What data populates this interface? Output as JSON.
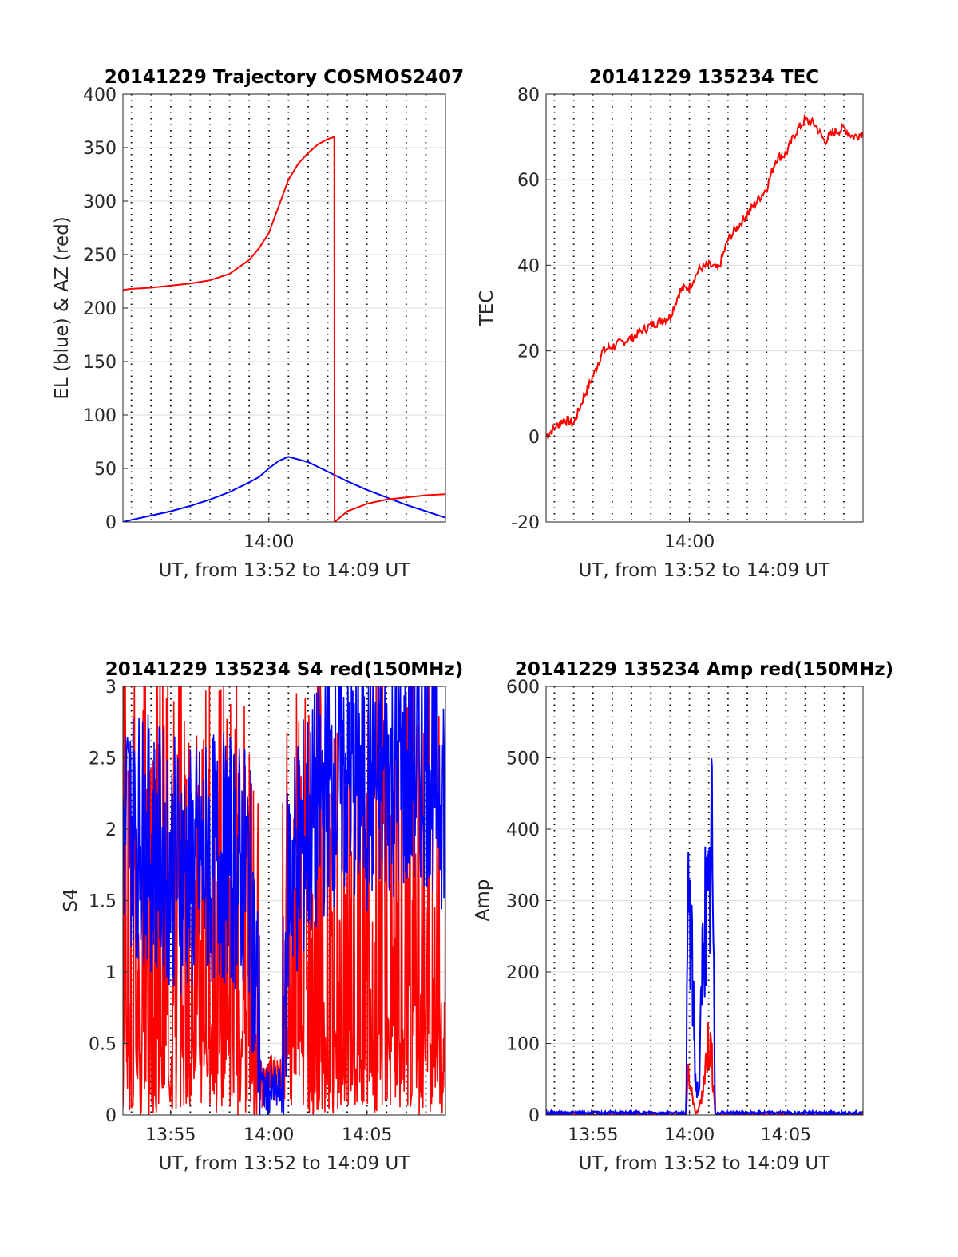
{
  "chart_data": [
    {
      "type": "line",
      "title": "20141229 Trajectory COSMOS2407",
      "xlabel": "UT, from 13:52 to 14:09 UT",
      "ylabel": "EL (blue) & AZ (red)",
      "xlim": [
        "13:52:34",
        "14:09:00"
      ],
      "ylim": [
        0,
        400
      ],
      "yticks": [
        "0",
        "50",
        "100",
        "150",
        "200",
        "250",
        "300",
        "350",
        "400"
      ],
      "xticks": [
        {
          "t": "14:00",
          "label": "14:00"
        }
      ],
      "grid": "dotted vertical every minute, solid horizontal",
      "series": [
        {
          "color": "#0000ff",
          "x": [
            "13:52:34",
            "13:53",
            "13:54",
            "13:55",
            "13:56",
            "13:57",
            "13:58",
            "13:59",
            "13:59:30",
            "14:00",
            "14:00:30",
            "14:01",
            "14:02",
            "14:03",
            "14:04",
            "14:05",
            "14:06",
            "14:07",
            "14:08",
            "14:09"
          ],
          "values": [
            0,
            2,
            6,
            10,
            15,
            21,
            28,
            37,
            42,
            50,
            57,
            61,
            56,
            47,
            38,
            30,
            23,
            16,
            10,
            4
          ]
        },
        {
          "color": "#ff0000",
          "x": [
            "13:52:34",
            "13:53",
            "13:54",
            "13:55",
            "13:56",
            "13:57",
            "13:58",
            "13:59",
            "13:59:30",
            "14:00",
            "14:00:30",
            "14:01",
            "14:01:30",
            "14:02",
            "14:02:30",
            "14:03",
            "14:03:20",
            "14:03:21",
            "14:04",
            "14:05",
            "14:06",
            "14:07",
            "14:08",
            "14:09"
          ],
          "values": [
            217,
            218,
            219,
            221,
            223,
            226,
            232,
            245,
            256,
            270,
            295,
            320,
            335,
            345,
            353,
            358,
            360,
            0,
            10,
            17,
            21,
            23,
            25,
            26
          ]
        }
      ]
    },
    {
      "type": "line",
      "title": "20141229 135234 TEC",
      "xlabel": "UT, from 13:52 to 14:09 UT",
      "ylabel": "TEC",
      "xlim": [
        "13:52:34",
        "14:09:00"
      ],
      "ylim": [
        -20,
        80
      ],
      "yticks": [
        "-20",
        "0",
        "20",
        "40",
        "60",
        "80"
      ],
      "xticks": [
        {
          "t": "14:00",
          "label": "14:00"
        }
      ],
      "grid": "dotted vertical every minute, solid horizontal",
      "series": [
        {
          "color": "#ff0000",
          "x": [
            "13:52:34",
            "13:53",
            "13:53:30",
            "13:54",
            "13:54:30",
            "13:55",
            "13:55:30",
            "13:56",
            "13:57",
            "13:58",
            "13:59",
            "13:59:30",
            "14:00",
            "14:00:30",
            "14:01",
            "14:01:30",
            "14:02",
            "14:03",
            "14:04",
            "14:04:30",
            "14:05",
            "14:05:30",
            "14:06",
            "14:06:30",
            "14:07",
            "14:07:30",
            "14:08",
            "14:08:30",
            "14:09"
          ],
          "values": [
            0,
            2,
            4,
            3,
            9,
            14,
            20,
            21,
            23,
            26,
            28,
            34,
            35,
            39,
            40,
            39,
            46,
            52,
            58,
            65,
            66,
            71,
            74,
            73,
            69,
            71,
            72,
            70,
            71
          ]
        }
      ]
    },
    {
      "type": "line",
      "title": "20141229 135234 S4 red(150MHz)",
      "xlabel": "UT, from 13:52 to 14:09 UT",
      "ylabel": "S4",
      "xlim": [
        "13:52:34",
        "14:09:00"
      ],
      "ylim": [
        0,
        3
      ],
      "yticks": [
        "0",
        "0.5",
        "1",
        "1.5",
        "2",
        "2.5",
        "3"
      ],
      "xticks": [
        {
          "t": "13:55",
          "label": "13:55"
        },
        {
          "t": "14:00",
          "label": "14:00"
        },
        {
          "t": "14:05",
          "label": "14:05"
        }
      ],
      "grid": "dotted vertical every minute, solid horizontal",
      "series": [
        {
          "color": "#ff0000",
          "x": [
            "13:52:34",
            "13:54",
            "13:55",
            "13:56",
            "13:57",
            "13:58",
            "13:59",
            "13:59:40",
            "14:00",
            "14:00:40",
            "14:01",
            "14:02",
            "14:03",
            "14:04",
            "14:05",
            "14:06",
            "14:07",
            "14:08",
            "14:09"
          ],
          "values": [
            1.6,
            1.5,
            1.4,
            1.3,
            1.2,
            1.3,
            0.8,
            0.1,
            0.2,
            0.2,
            1.0,
            1.2,
            1.1,
            1.0,
            1.3,
            1.4,
            1.3,
            1.2,
            1.2
          ]
        },
        {
          "color": "#0000ff",
          "x": [
            "13:52:34",
            "13:54",
            "13:55",
            "13:56",
            "13:57",
            "13:58",
            "13:59",
            "13:59:40",
            "14:00",
            "14:00:40",
            "14:01",
            "14:02",
            "14:03",
            "14:04",
            "14:05",
            "14:06",
            "14:07",
            "14:08",
            "14:09"
          ],
          "values": [
            2.0,
            1.8,
            1.7,
            1.6,
            1.7,
            1.7,
            1.6,
            0.1,
            0.1,
            0.1,
            1.6,
            1.9,
            2.2,
            2.3,
            2.2,
            2.3,
            2.3,
            2.4,
            2.2
          ]
        }
      ]
    },
    {
      "type": "line",
      "title": "20141229 135234 Amp red(150MHz)",
      "xlabel": "UT, from 13:52 to 14:09 UT",
      "ylabel": "Amp",
      "xlim": [
        "13:52:34",
        "14:09:00"
      ],
      "ylim": [
        0,
        600
      ],
      "yticks": [
        "0",
        "100",
        "200",
        "300",
        "400",
        "500",
        "600"
      ],
      "xticks": [
        {
          "t": "13:55",
          "label": "13:55"
        },
        {
          "t": "14:00",
          "label": "14:00"
        },
        {
          "t": "14:05",
          "label": "14:05"
        }
      ],
      "grid": "dotted vertical every minute, solid horizontal",
      "series": [
        {
          "color": "#ff0000",
          "x": [
            "13:52:34",
            "13:59:50",
            "13:59:55",
            "14:00:05",
            "14:00:20",
            "14:00:30",
            "14:00:45",
            "14:01",
            "14:01:10",
            "14:01:20",
            "14:09"
          ],
          "values": [
            0,
            0,
            80,
            40,
            0,
            10,
            60,
            130,
            100,
            0,
            0
          ]
        },
        {
          "color": "#0000ff",
          "x": [
            "13:52:34",
            "13:59:50",
            "13:59:55",
            "14:00:05",
            "14:00:20",
            "14:00:30",
            "14:00:45",
            "14:01",
            "14:01:10",
            "14:01:20",
            "14:09"
          ],
          "values": [
            3,
            3,
            390,
            300,
            50,
            40,
            360,
            330,
            485,
            3,
            3
          ]
        }
      ]
    }
  ]
}
